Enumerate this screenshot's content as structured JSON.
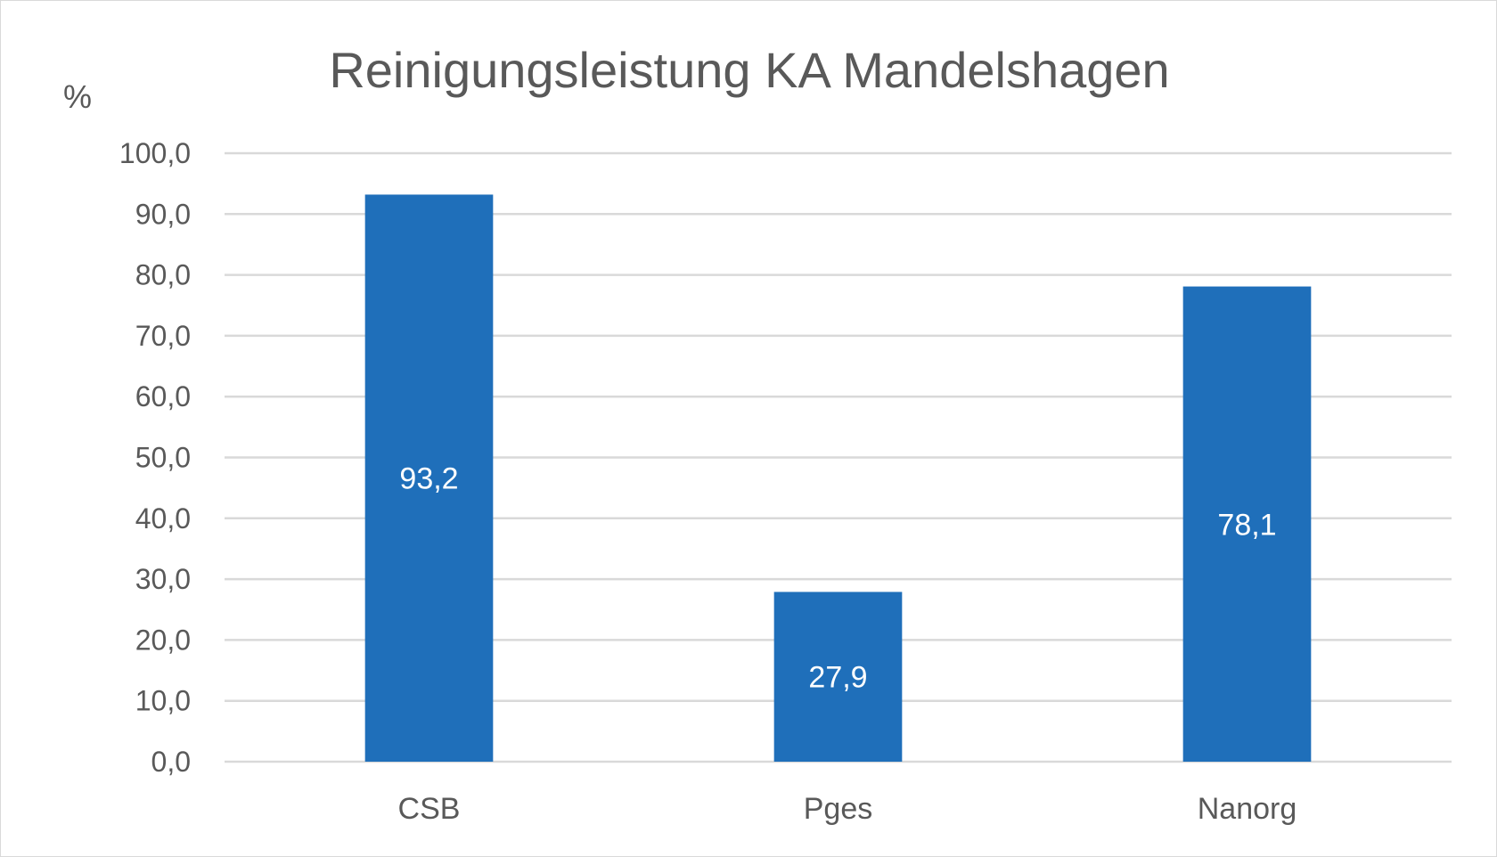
{
  "chart_data": {
    "type": "bar",
    "title": "Reinigungsleistung KA Mandelshagen",
    "ylabel": "%",
    "xlabel": "",
    "categories": [
      "CSB",
      "Pges",
      "Nanorg"
    ],
    "values": [
      93.2,
      27.9,
      78.1
    ],
    "value_labels": [
      "93,2",
      "27,9",
      "78,1"
    ],
    "ylim": [
      0,
      100
    ],
    "ytick_values": [
      0,
      10,
      20,
      30,
      40,
      50,
      60,
      70,
      80,
      90,
      100
    ],
    "ytick_labels": [
      "0,0",
      "10,0",
      "20,0",
      "30,0",
      "40,0",
      "50,0",
      "60,0",
      "70,0",
      "80,0",
      "90,0",
      "100,0"
    ],
    "grid": true,
    "legend": "none",
    "bar_color": "#1f6fba"
  }
}
